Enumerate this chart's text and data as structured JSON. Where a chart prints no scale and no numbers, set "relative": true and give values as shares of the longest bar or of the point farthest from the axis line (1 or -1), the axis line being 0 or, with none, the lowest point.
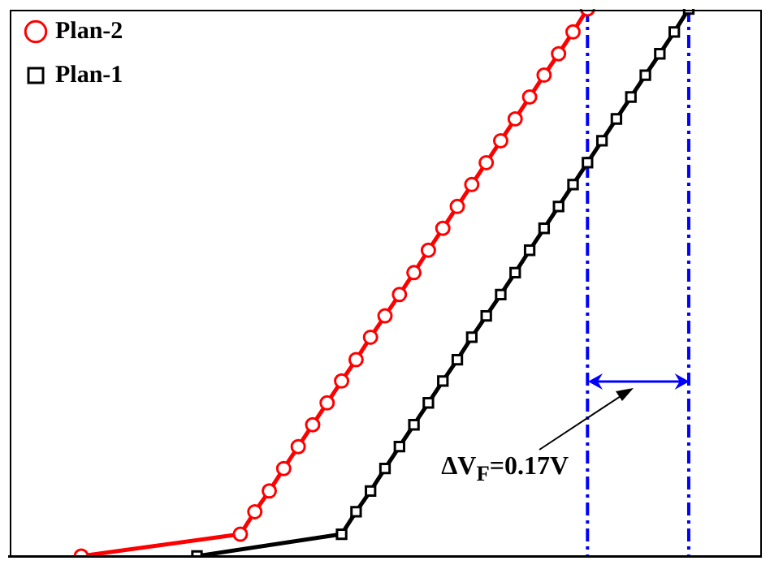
{
  "chart_data": {
    "type": "line",
    "relative": true,
    "grid": false,
    "legend": "top left",
    "line_style": "solid",
    "categories": [
      null,
      null,
      null,
      null,
      null,
      null,
      null,
      null,
      null,
      null,
      null,
      null,
      null,
      null,
      null,
      null,
      null,
      null,
      null,
      null,
      null,
      null,
      null,
      null,
      null,
      null,
      null,
      null,
      null,
      null,
      null,
      null,
      null,
      null,
      null,
      null,
      null,
      null,
      null,
      null,
      null,
      null,
      null,
      null,
      null,
      null,
      null,
      null,
      null,
      null,
      null,
      null,
      null
    ],
    "series": [
      {
        "name": "Plan-2",
        "color": "#ff0000",
        "marker": "circle",
        "values": [
          null,
          null,
          null,
          null,
          null,
          0,
          null,
          null,
          null,
          null,
          null,
          null,
          null,
          null,
          null,
          null,
          0.04,
          0.081,
          0.119,
          0.16,
          0.2,
          0.24,
          0.28,
          0.32,
          0.359,
          0.4,
          0.439,
          0.478,
          0.518,
          0.559,
          0.599,
          0.639,
          0.679,
          0.719,
          0.759,
          0.799,
          0.839,
          0.879,
          0.918,
          0.958,
          1,
          null,
          null,
          null,
          null,
          null,
          null,
          null,
          null,
          null,
          null,
          null,
          null
        ]
      },
      {
        "name": "Plan-1",
        "color": "#000000",
        "marker": "square",
        "values": [
          null,
          null,
          null,
          null,
          null,
          null,
          null,
          null,
          null,
          null,
          null,
          null,
          null,
          0,
          null,
          null,
          null,
          null,
          null,
          null,
          null,
          null,
          null,
          0.04,
          0.081,
          0.119,
          0.16,
          0.2,
          0.24,
          0.28,
          0.32,
          0.359,
          0.4,
          0.439,
          0.478,
          0.518,
          0.559,
          0.599,
          0.639,
          0.679,
          0.719,
          0.759,
          0.799,
          0.839,
          0.879,
          0.918,
          0.958,
          1,
          null,
          null,
          null,
          null,
          null
        ]
      }
    ],
    "annotations": [
      "ΔV$_{F}$=0.17V"
    ]
  }
}
